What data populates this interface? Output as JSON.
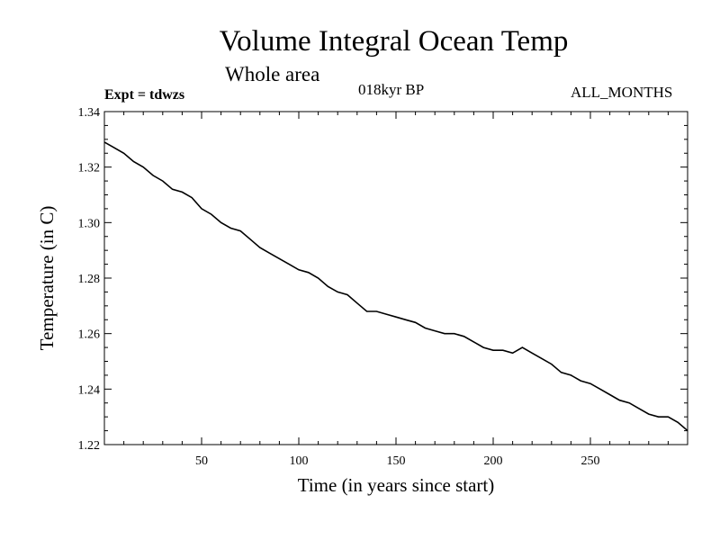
{
  "header": {
    "title": "Volume Integral Ocean Temp",
    "subtitle": "Whole area",
    "experiment": "Expt = tdwzs",
    "period": "018kyr BP",
    "months": "ALL_MONTHS"
  },
  "chart_data": {
    "type": "line",
    "title": "Volume Integral Ocean Temp",
    "subtitle": "Whole area",
    "xlabel": "Time (in years since start)",
    "ylabel": "Temperature (in C)",
    "xlim": [
      0,
      300
    ],
    "ylim": [
      1.22,
      1.34
    ],
    "xticks": [
      50,
      100,
      150,
      200,
      250
    ],
    "yticks": [
      1.22,
      1.24,
      1.26,
      1.28,
      1.3,
      1.32,
      1.34
    ],
    "ytick_labels": [
      "1.22",
      "1.24",
      "1.26",
      "1.28",
      "1.30",
      "1.32",
      "1.34"
    ],
    "grid": false,
    "series": [
      {
        "x": [
          0,
          5,
          10,
          15,
          20,
          25,
          30,
          35,
          40,
          45,
          50,
          55,
          60,
          65,
          70,
          75,
          80,
          85,
          90,
          95,
          100,
          105,
          110,
          115,
          120,
          125,
          130,
          135,
          140,
          145,
          150,
          155,
          160,
          165,
          170,
          175,
          180,
          185,
          190,
          195,
          200,
          205,
          210,
          215,
          220,
          225,
          230,
          235,
          240,
          245,
          250,
          255,
          260,
          265,
          270,
          275,
          280,
          285,
          290,
          295,
          300
        ],
        "y": [
          1.329,
          1.327,
          1.325,
          1.322,
          1.32,
          1.317,
          1.315,
          1.312,
          1.311,
          1.309,
          1.305,
          1.303,
          1.3,
          1.298,
          1.297,
          1.294,
          1.291,
          1.289,
          1.287,
          1.285,
          1.283,
          1.282,
          1.28,
          1.277,
          1.275,
          1.274,
          1.271,
          1.268,
          1.268,
          1.267,
          1.266,
          1.265,
          1.264,
          1.262,
          1.261,
          1.26,
          1.26,
          1.259,
          1.257,
          1.255,
          1.254,
          1.254,
          1.253,
          1.255,
          1.253,
          1.251,
          1.249,
          1.246,
          1.245,
          1.243,
          1.242,
          1.24,
          1.238,
          1.236,
          1.235,
          1.233,
          1.231,
          1.23,
          1.23,
          1.228,
          1.225
        ]
      }
    ]
  }
}
